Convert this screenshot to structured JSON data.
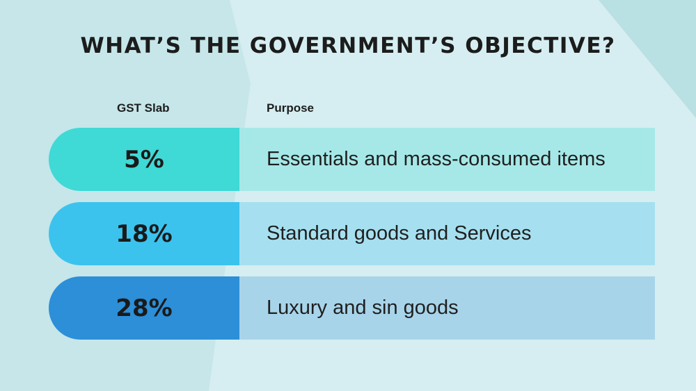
{
  "title": "WHAT’S THE GOVERNMENT’S OBJECTIVE?",
  "headers": {
    "slab": "GST Slab",
    "purpose": "Purpose"
  },
  "rows": [
    {
      "slab": "5%",
      "purpose": "Essentials and mass-consumed items",
      "pill_color": "#3fd9d6",
      "cell_color": "#a6e8e8"
    },
    {
      "slab": "18%",
      "purpose": "Standard goods and Services",
      "pill_color": "#3bc3ee",
      "cell_color": "#a6e0f0"
    },
    {
      "slab": "28%",
      "purpose": "Luxury and sin goods",
      "pill_color": "#2c8fd8",
      "cell_color": "#a8d4ea"
    }
  ]
}
